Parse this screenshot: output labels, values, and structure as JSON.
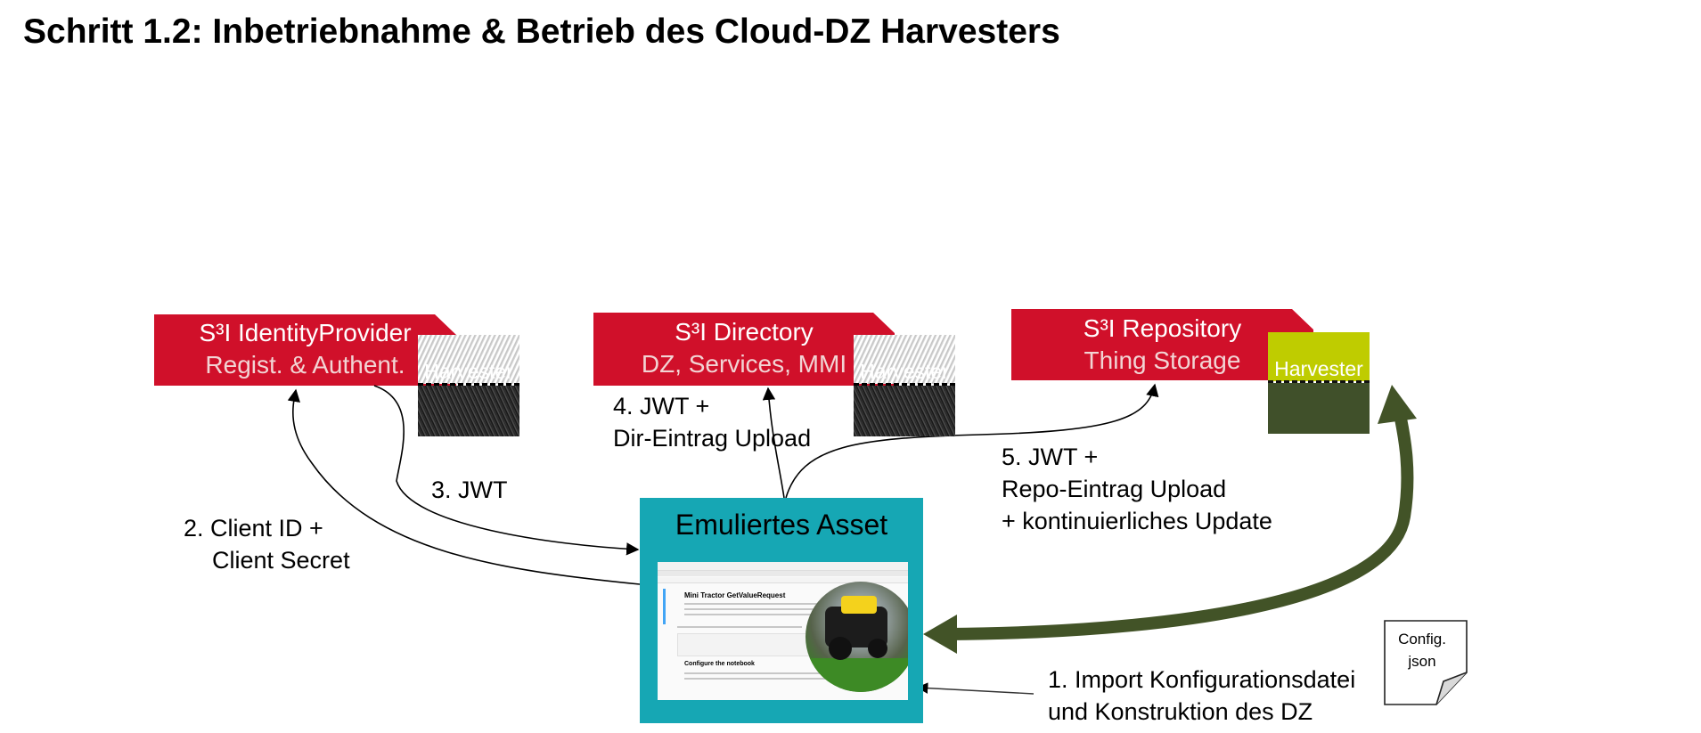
{
  "title": "Schritt 1.2: Inbetriebnahme & Betrieb des Cloud-DZ Harvesters",
  "nodes": {
    "identity_provider": {
      "title": "S³I IdentityProvider",
      "subtitle": "Regist. & Authent."
    },
    "directory": {
      "title": "S³I Directory",
      "subtitle": "DZ, Services, MMI"
    },
    "repository": {
      "title": "S³I Repository",
      "subtitle": "Thing Storage"
    },
    "asset": {
      "title": "Emuliertes Asset"
    }
  },
  "harvester_label": "Harvester",
  "config_file": {
    "line1": "Config.",
    "line2": "json"
  },
  "steps": {
    "step1_l1": "1. Import Konfigurationsdatei",
    "step1_l2": "und Konstruktion des DZ",
    "step2_l1": "2. Client ID +",
    "step2_l2": "Client Secret",
    "step3": "3. JWT",
    "step4_l1": "4. JWT +",
    "step4_l2": "Dir-Eintrag Upload",
    "step5_l1": "5. JWT +",
    "step5_l2": "Repo-Eintrag Upload",
    "step5_l3": "+ kontinuierliches Update"
  },
  "notebook": {
    "heading": "Mini Tractor GetValueRequest",
    "section": "Configure the notebook"
  },
  "colors": {
    "banner_red": "#d0102a",
    "asset_teal": "#16a7b4",
    "harvester_green_top": "#bfcc00",
    "harvester_green_bottom": "#40502a",
    "big_arrow": "#425327"
  }
}
